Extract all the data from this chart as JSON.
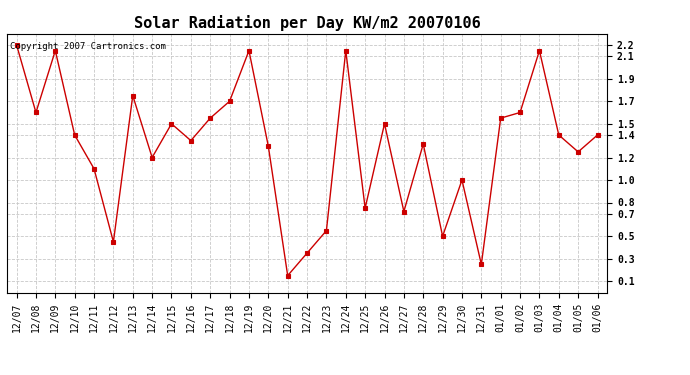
{
  "title": "Solar Radiation per Day KW/m2 20070106",
  "copyright_text": "Copyright 2007 Cartronics.com",
  "labels": [
    "12/07",
    "12/08",
    "12/09",
    "12/10",
    "12/11",
    "12/12",
    "12/13",
    "12/14",
    "12/15",
    "12/16",
    "12/17",
    "12/18",
    "12/19",
    "12/20",
    "12/21",
    "12/22",
    "12/23",
    "12/24",
    "12/25",
    "12/26",
    "12/27",
    "12/28",
    "12/29",
    "12/30",
    "12/31",
    "01/01",
    "01/02",
    "01/03",
    "01/04",
    "01/05",
    "01/06"
  ],
  "values": [
    2.2,
    1.6,
    2.15,
    1.4,
    1.1,
    0.45,
    1.75,
    1.2,
    1.5,
    1.35,
    1.55,
    1.7,
    2.15,
    1.3,
    0.15,
    0.35,
    0.55,
    2.15,
    0.75,
    1.5,
    0.72,
    1.32,
    0.5,
    1.0,
    0.25,
    1.55,
    1.6,
    2.15,
    1.4,
    1.25,
    1.4
  ],
  "line_color": "#cc0000",
  "marker": "s",
  "marker_size": 3,
  "marker_color": "#cc0000",
  "bg_color": "#ffffff",
  "grid_color": "#c8c8c8",
  "ylim": [
    0.0,
    2.3
  ],
  "yticks": [
    0.1,
    0.3,
    0.5,
    0.7,
    0.8,
    1.0,
    1.2,
    1.4,
    1.5,
    1.7,
    1.9,
    2.1,
    2.2
  ],
  "title_fontsize": 11,
  "tick_fontsize": 7,
  "copyright_fontsize": 6.5
}
